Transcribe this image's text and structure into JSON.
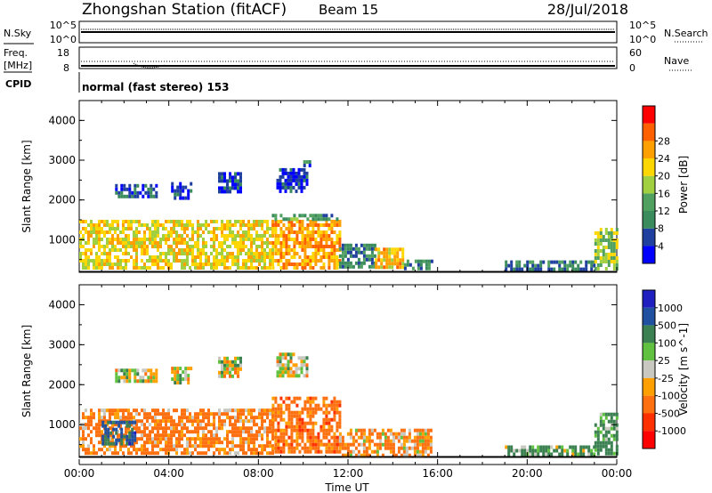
{
  "header": {
    "station": "Zhongshan Station (fitACF)",
    "beam": "Beam 15",
    "date": "28/Jul/2018"
  },
  "noise_panel": {
    "left_label": "N.Sky",
    "right_label": "N.Search",
    "left_ticks": [
      "10^5",
      "10^0"
    ],
    "right_ticks": [
      "10^5",
      "10^0"
    ]
  },
  "freq_panel": {
    "left_label_1": "Freq.",
    "left_label_2": "[MHz]",
    "left_ticks": [
      "18",
      "8"
    ],
    "right_label": "Nave",
    "right_ticks": [
      "60",
      "0"
    ]
  },
  "cpid": {
    "label": "CPID",
    "value": "normal (fast stereo) 153"
  },
  "colors": {
    "power": [
      "#0000ff",
      "#2040a0",
      "#3a8c5c",
      "#50a060",
      "#a0d040",
      "#ffd700",
      "#ffa000",
      "#ff6000",
      "#ff0000"
    ],
    "velocity": [
      "#2020c0",
      "#2050a0",
      "#3a8050",
      "#60c040",
      "#c8c8c0",
      "#ffa000",
      "#ff7010",
      "#ff3000",
      "#ff0000"
    ]
  },
  "chart_data": [
    {
      "type": "heatmap",
      "title": "Power",
      "ylabel": "Slant Range [km]",
      "xlabel": "Time UT",
      "x_ticks": [
        "00:00",
        "04:00",
        "08:00",
        "12:00",
        "16:00",
        "20:00",
        "00:00"
      ],
      "y_ticks": [
        1000,
        2000,
        3000,
        4000
      ],
      "ylim": [
        180,
        4500
      ],
      "xlim_hours": [
        0,
        24
      ],
      "colorbar": {
        "label": "Power [dB]",
        "ticks": [
          "4",
          "8",
          "12",
          "16",
          "20",
          "24",
          "28"
        ],
        "range": [
          0,
          32
        ]
      },
      "regions": [
        {
          "t0": 0.0,
          "t1": 8.6,
          "r0": 300,
          "r1": 1500,
          "value": 22
        },
        {
          "t0": 8.6,
          "t1": 11.6,
          "r0": 300,
          "r1": 1500,
          "value": 26
        },
        {
          "t0": 8.6,
          "t1": 11.5,
          "r0": 1500,
          "r1": 1650,
          "value": 12
        },
        {
          "t0": 11.6,
          "t1": 13.2,
          "r0": 300,
          "r1": 900,
          "value": 10
        },
        {
          "t0": 13.2,
          "t1": 14.5,
          "r0": 300,
          "r1": 800,
          "value": 24
        },
        {
          "t0": 14.5,
          "t1": 15.7,
          "r0": 250,
          "r1": 500,
          "value": 10
        },
        {
          "t0": 19.0,
          "t1": 23.0,
          "r0": 280,
          "r1": 480,
          "value": 9
        },
        {
          "t0": 23.0,
          "t1": 24.0,
          "r0": 300,
          "r1": 1300,
          "value": 18
        },
        {
          "t0": 1.6,
          "t1": 3.5,
          "r0": 2050,
          "r1": 2400,
          "value": 5
        },
        {
          "t0": 4.1,
          "t1": 5.0,
          "r0": 2050,
          "r1": 2450,
          "value": 5
        },
        {
          "t0": 6.2,
          "t1": 7.2,
          "r0": 2200,
          "r1": 2700,
          "value": 5
        },
        {
          "t0": 8.8,
          "t1": 10.2,
          "r0": 2200,
          "r1": 2800,
          "value": 5
        },
        {
          "t0": 10.0,
          "t1": 10.3,
          "r0": 2900,
          "r1": 3000,
          "value": 8
        }
      ]
    },
    {
      "type": "heatmap",
      "title": "Velocity",
      "ylabel": "Slant Range [km]",
      "xlabel": "Time UT",
      "x_ticks": [
        "00:00",
        "04:00",
        "08:00",
        "12:00",
        "16:00",
        "20:00",
        "00:00"
      ],
      "y_ticks": [
        1000,
        2000,
        3000,
        4000
      ],
      "ylim": [
        180,
        4500
      ],
      "xlim_hours": [
        0,
        24
      ],
      "colorbar": {
        "label": "Velocity [m s^-1]",
        "ticks": [
          "1000",
          "500",
          "100",
          "25",
          "-25",
          "-100",
          "-500",
          "-1000"
        ]
      },
      "regions": [
        {
          "t0": 0.0,
          "t1": 8.6,
          "r0": 300,
          "r1": 1400,
          "value": -200
        },
        {
          "t0": 1.0,
          "t1": 2.5,
          "r0": 500,
          "r1": 1100,
          "value": 600
        },
        {
          "t0": 8.6,
          "t1": 11.6,
          "r0": 300,
          "r1": 1700,
          "value": -300
        },
        {
          "t0": 11.6,
          "t1": 15.7,
          "r0": 250,
          "r1": 900,
          "value": -150
        },
        {
          "t0": 19.0,
          "t1": 23.0,
          "r0": 280,
          "r1": 480,
          "value": 150
        },
        {
          "t0": 23.0,
          "t1": 24.0,
          "r0": 300,
          "r1": 1300,
          "value": 200
        },
        {
          "t0": 1.6,
          "t1": 3.5,
          "r0": 2050,
          "r1": 2400,
          "value": 0
        },
        {
          "t0": 4.1,
          "t1": 5.0,
          "r0": 2050,
          "r1": 2450,
          "value": 0
        },
        {
          "t0": 6.2,
          "t1": 7.2,
          "r0": 2200,
          "r1": 2700,
          "value": 0
        },
        {
          "t0": 8.8,
          "t1": 10.2,
          "r0": 2200,
          "r1": 2800,
          "value": 0
        }
      ]
    }
  ]
}
